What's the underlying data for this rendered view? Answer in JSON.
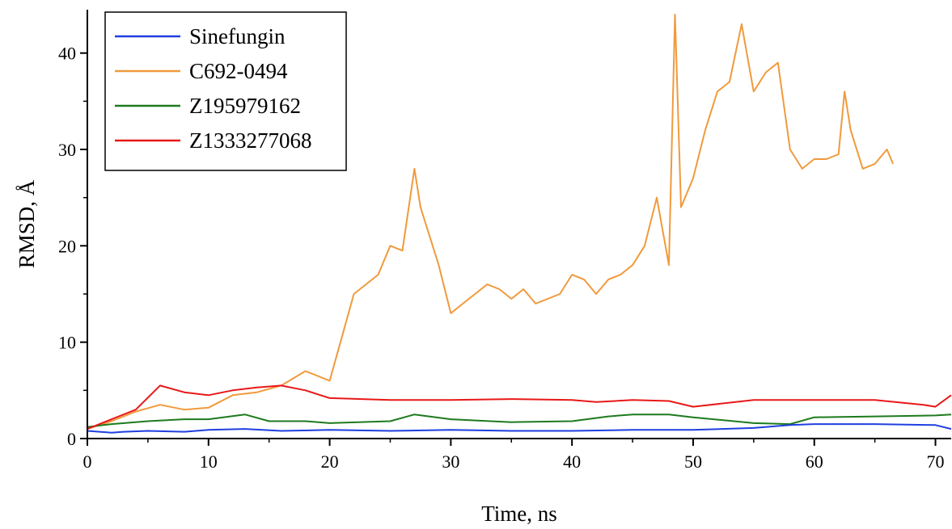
{
  "chart_data": {
    "type": "line",
    "title": "",
    "xlabel": "Time, ns",
    "ylabel": "RMSD, Å",
    "xlim": [
      0,
      71.3
    ],
    "ylim": [
      0,
      44.5
    ],
    "x_ticks": [
      0,
      10,
      20,
      30,
      40,
      50,
      60,
      70
    ],
    "y_ticks": [
      0,
      10,
      20,
      30,
      40
    ],
    "grid": false,
    "legend_position": "top-left",
    "series": [
      {
        "name": "Sinefungin",
        "color": "#1f3fe0",
        "x": [
          0,
          1,
          2,
          3,
          5,
          8,
          10,
          13,
          16,
          20,
          25,
          30,
          35,
          40,
          45,
          50,
          55,
          58,
          60,
          65,
          70,
          71.3
        ],
        "y": [
          0.8,
          0.7,
          0.6,
          0.7,
          0.8,
          0.7,
          0.9,
          1.0,
          0.8,
          0.9,
          0.8,
          0.9,
          0.8,
          0.8,
          0.9,
          0.9,
          1.1,
          1.4,
          1.5,
          1.5,
          1.4,
          1.0
        ]
      },
      {
        "name": "C692-0494",
        "color": "#f09a3c",
        "x": [
          0,
          2,
          4,
          6,
          8,
          10,
          12,
          14,
          16,
          18,
          20,
          21,
          22,
          23,
          24,
          25,
          26,
          27,
          27.5,
          28,
          29,
          30,
          31,
          32,
          33,
          34,
          35,
          36,
          37,
          38,
          39,
          40,
          41,
          42,
          43,
          44,
          45,
          46,
          47,
          48,
          48.5,
          49,
          50,
          51,
          52,
          53,
          54,
          55,
          56,
          57,
          58,
          59,
          60,
          61,
          62,
          62.5,
          63,
          64,
          65,
          66,
          66.5
        ],
        "y": [
          1.0,
          1.8,
          2.8,
          3.5,
          3.0,
          3.2,
          4.5,
          4.8,
          5.5,
          7.0,
          6.0,
          10.5,
          15.0,
          16.0,
          17.0,
          20.0,
          19.5,
          28.0,
          24.0,
          22.0,
          18.0,
          13.0,
          14.0,
          15.0,
          16.0,
          15.5,
          14.5,
          15.5,
          14.0,
          14.5,
          15.0,
          17.0,
          16.5,
          15.0,
          16.5,
          17.0,
          18.0,
          20.0,
          25.0,
          18.0,
          44.0,
          24.0,
          27.0,
          32.0,
          36.0,
          37.0,
          43.0,
          36.0,
          38.0,
          39.0,
          30.0,
          28.0,
          29.0,
          29.0,
          29.5,
          36.0,
          32.0,
          28.0,
          28.5,
          30.0,
          28.5
        ]
      },
      {
        "name": "Z195979162",
        "color": "#1d7a1d",
        "x": [
          0,
          2,
          5,
          8,
          10,
          13,
          15,
          18,
          20,
          25,
          27,
          30,
          35,
          40,
          43,
          45,
          48,
          50,
          55,
          58,
          60,
          65,
          70,
          71.3
        ],
        "y": [
          1.2,
          1.5,
          1.8,
          2.0,
          2.0,
          2.5,
          1.8,
          1.8,
          1.6,
          1.8,
          2.5,
          2.0,
          1.7,
          1.8,
          2.3,
          2.5,
          2.5,
          2.2,
          1.6,
          1.5,
          2.2,
          2.3,
          2.4,
          2.5
        ]
      },
      {
        "name": "Z1333277068",
        "color": "#e81818",
        "x": [
          0,
          2,
          4,
          6,
          8,
          10,
          12,
          14,
          16,
          18,
          20,
          25,
          30,
          35,
          40,
          42,
          45,
          48,
          50,
          55,
          60,
          65,
          69,
          70,
          71.3
        ],
        "y": [
          1.0,
          2.0,
          3.0,
          5.5,
          4.8,
          4.5,
          5.0,
          5.3,
          5.5,
          5.0,
          4.2,
          4.0,
          4.0,
          4.1,
          4.0,
          3.8,
          4.0,
          3.9,
          3.3,
          4.0,
          4.0,
          4.0,
          3.5,
          3.3,
          4.5
        ]
      }
    ]
  }
}
